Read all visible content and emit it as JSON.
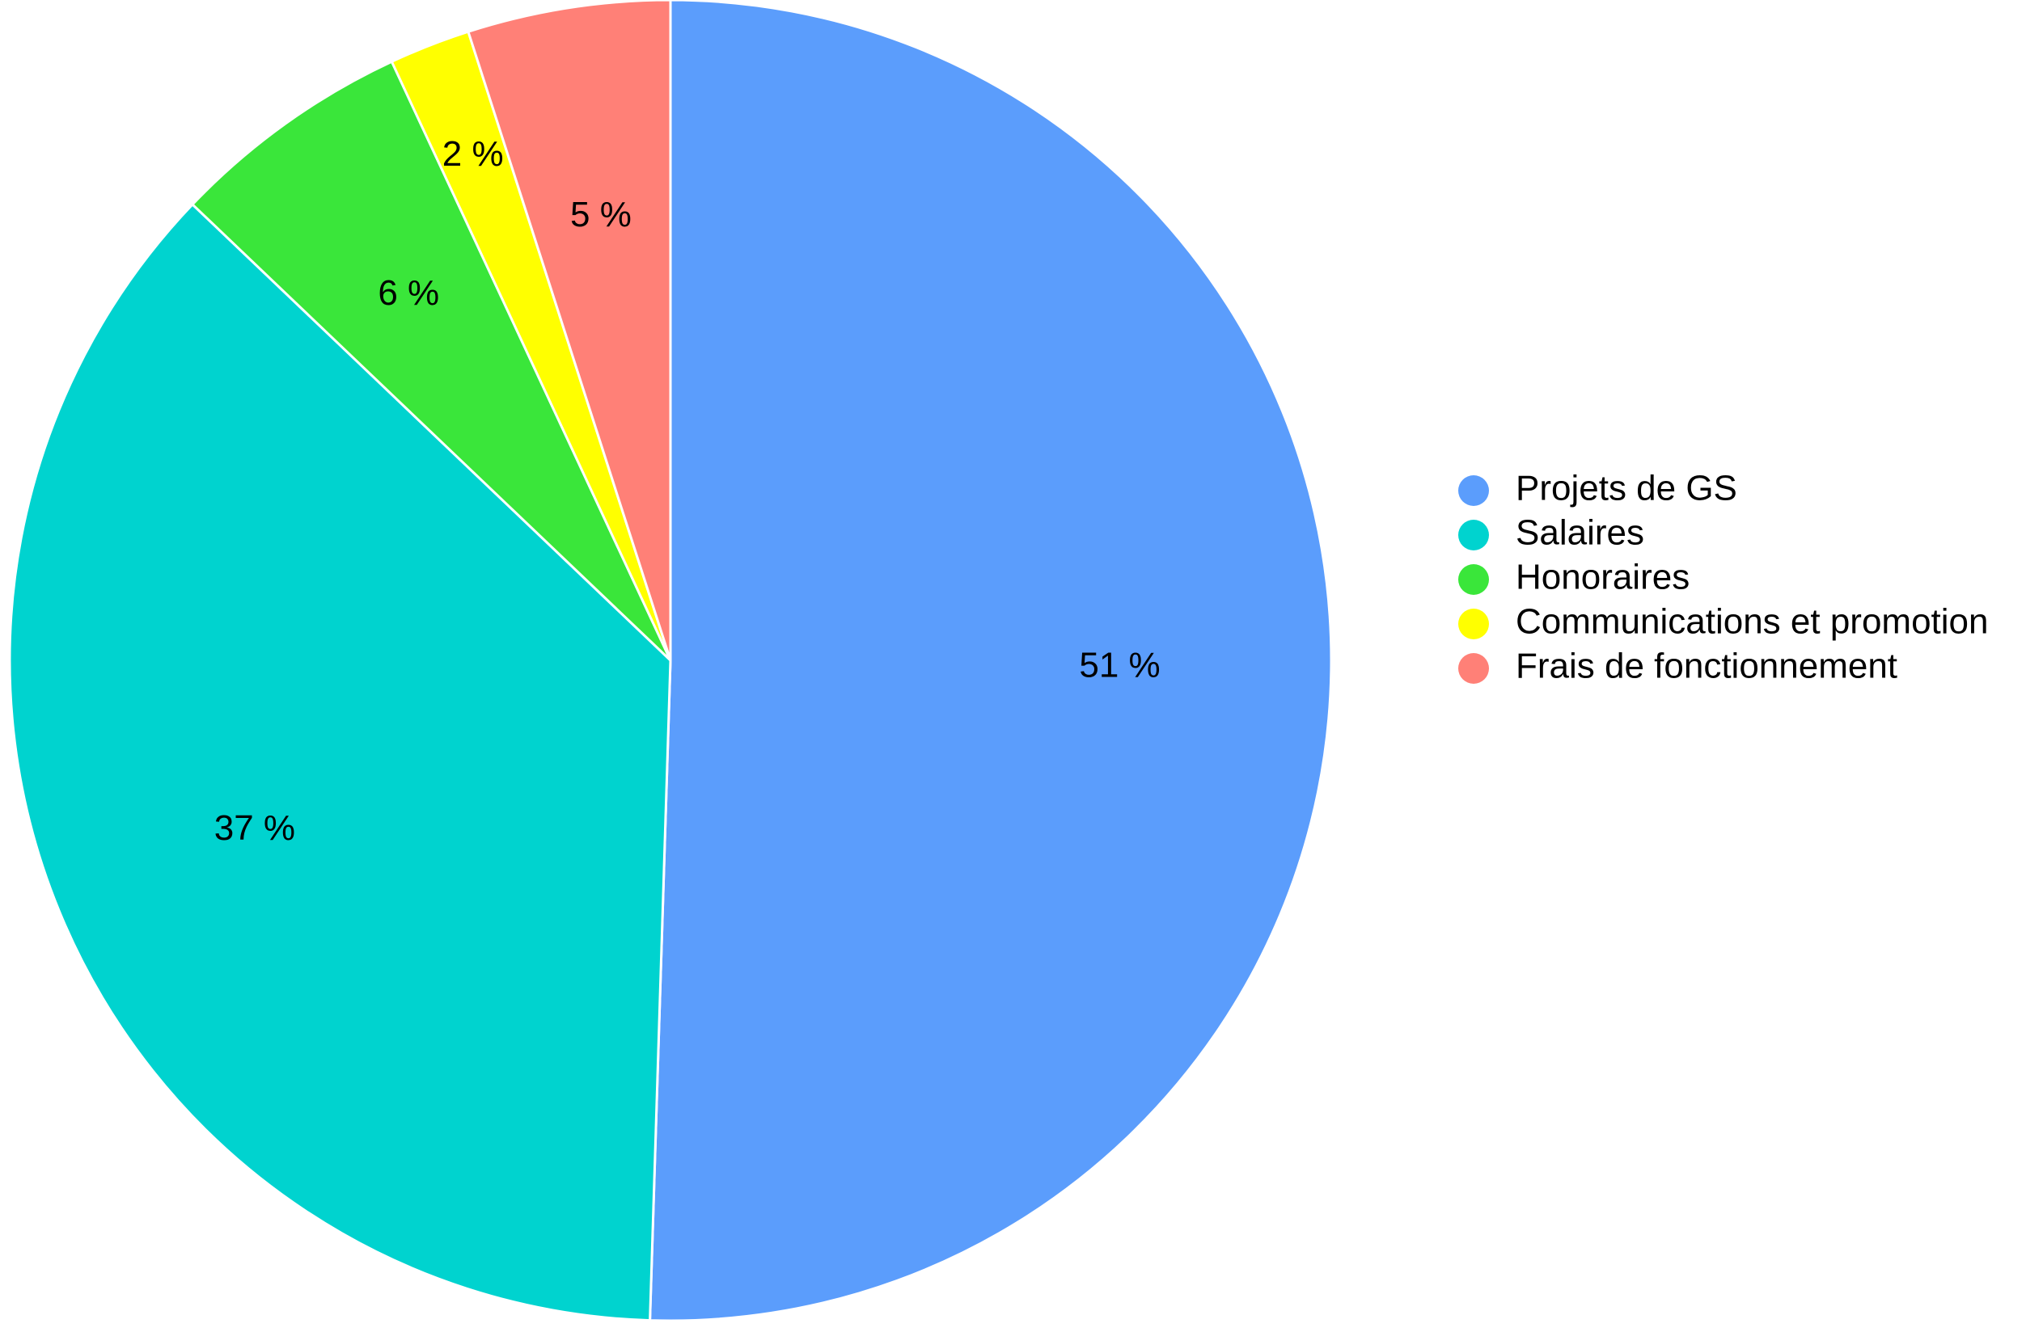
{
  "chart_data": {
    "type": "pie",
    "categories": [
      "Projets de GS",
      "Salaires",
      "Honoraires",
      "Communications et promotion",
      "Frais de fonctionnement"
    ],
    "values": [
      51,
      37,
      6,
      2,
      5
    ],
    "value_labels": [
      "51 %",
      "37 %",
      "6 %",
      "2 %",
      "5 %"
    ],
    "colors": [
      "#5B9DFC",
      "#00D3CF",
      "#3AE63A",
      "#FFFF00",
      "#FF8077"
    ],
    "legend": {
      "placement": "right",
      "entries": [
        "Projets de GS",
        "Salaires",
        "Honoraires",
        "Communications et promotion",
        "Frais de fonctionnement"
      ]
    }
  }
}
